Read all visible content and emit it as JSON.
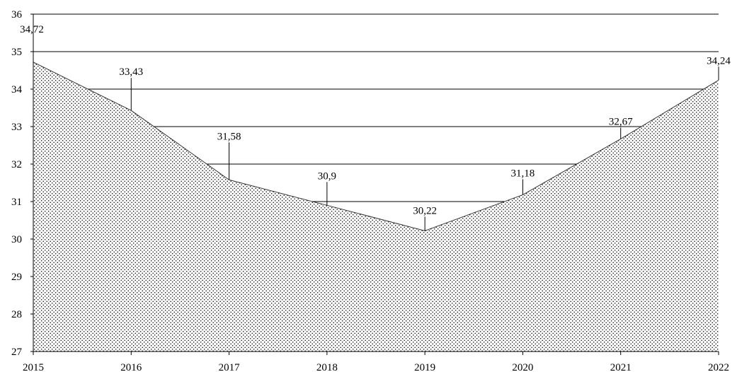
{
  "chart_data": {
    "type": "area",
    "title": "",
    "xlabel": "",
    "ylabel": "",
    "x": [
      "2015",
      "2016",
      "2017",
      "2018",
      "2019",
      "2020",
      "2021",
      "2022"
    ],
    "series": [
      {
        "values": [
          34.72,
          33.43,
          31.58,
          30.9,
          30.22,
          31.18,
          32.67,
          34.24
        ]
      }
    ],
    "data_labels": [
      "34,72",
      "33,43",
      "31,58",
      "30,9",
      "30,22",
      "31,18",
      "32,67",
      "34,24"
    ],
    "ylim": [
      27,
      36
    ],
    "yticks": [
      "27",
      "28",
      "29",
      "30",
      "31",
      "32",
      "33",
      "34",
      "35",
      "36"
    ],
    "grid": true,
    "legend": "none",
    "fill_pattern": "dotted",
    "colors": {
      "line": "#333333",
      "dots": "#000000",
      "grid": "#000000"
    }
  }
}
